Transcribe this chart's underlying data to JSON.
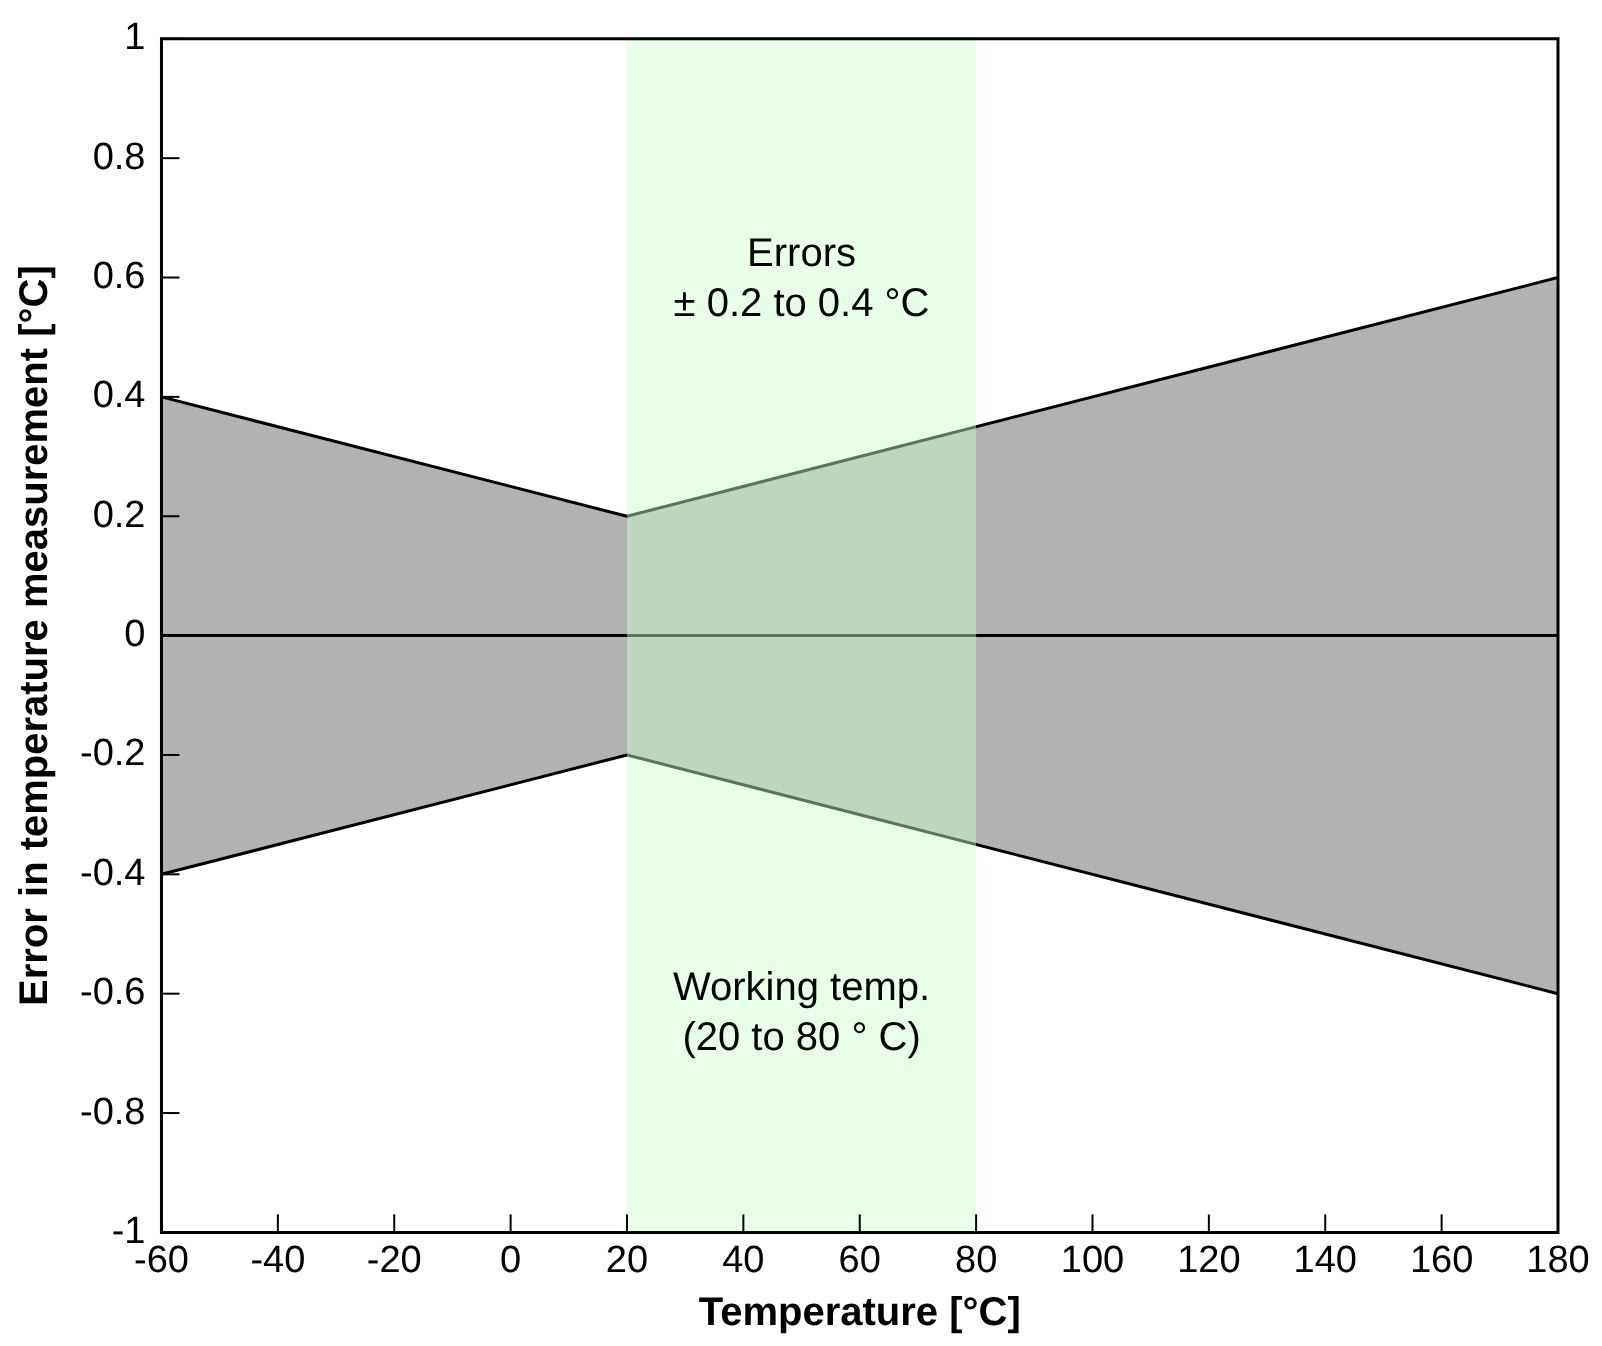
{
  "chart_data": {
    "type": "line",
    "xlabel": "Temperature [°C]",
    "ylabel": "Error in temperature measurement [°C]",
    "xlim": [
      -60,
      180
    ],
    "xticks": [
      -60,
      -40,
      -20,
      0,
      20,
      40,
      60,
      80,
      100,
      120,
      140,
      160,
      180
    ],
    "ylim": [
      -1,
      1
    ],
    "yticks": [
      -1,
      -0.8,
      -0.6,
      -0.4,
      -0.2,
      0,
      0.2,
      0.4,
      0.6,
      0.8,
      1
    ],
    "series": [
      {
        "color": "#000000",
        "x": [
          -60,
          20,
          180
        ],
        "values": [
          0,
          0,
          0
        ],
        "lower": [
          -0.4,
          -0.2,
          -0.6
        ],
        "upper": [
          0.4,
          0.2,
          0.6
        ]
      },
      {
        "color": "#000000",
        "x": [
          -60,
          20,
          180
        ],
        "values": [
          0.4,
          0.2,
          0.6
        ]
      },
      {
        "color": "#000000",
        "x": [
          -60,
          20,
          180
        ],
        "values": [
          -0.4,
          -0.2,
          -0.6
        ]
      }
    ],
    "bands": [
      {
        "axis": "x",
        "from": 20,
        "to": 80,
        "label": "Working temp.\n(20 to 80 ° C)",
        "color": "#ccffcc"
      }
    ],
    "annotations": [
      "Errors\n± 0.2 to 0.4 °C"
    ],
    "legend": false
  }
}
